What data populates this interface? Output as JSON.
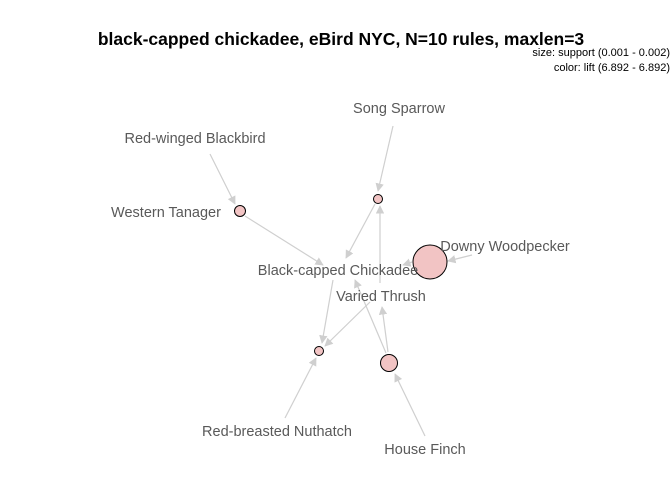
{
  "title": "black-capped chickadee, eBird NYC, N=10 rules, maxlen=3",
  "legend": {
    "size": "size: support (0.001 - 0.002)",
    "color": "color: lift (6.892 - 6.892)"
  },
  "colors": {
    "rule_fill": "#f2c4c4",
    "edge": "#cfcfcf",
    "label": "#595959"
  },
  "items": [
    {
      "id": "song-sparrow",
      "label": "Song Sparrow"
    },
    {
      "id": "red-winged-blackbird",
      "label": "Red-winged Blackbird"
    },
    {
      "id": "western-tanager",
      "label": "Western Tanager"
    },
    {
      "id": "downy-woodpecker",
      "label": "Downy Woodpecker"
    },
    {
      "id": "black-capped-chickadee",
      "label": "Black-capped Chickadee"
    },
    {
      "id": "varied-thrush",
      "label": "Varied Thrush"
    },
    {
      "id": "red-breasted-nuthatch",
      "label": "Red-breasted Nuthatch"
    },
    {
      "id": "house-finch",
      "label": "House Finch"
    }
  ]
}
